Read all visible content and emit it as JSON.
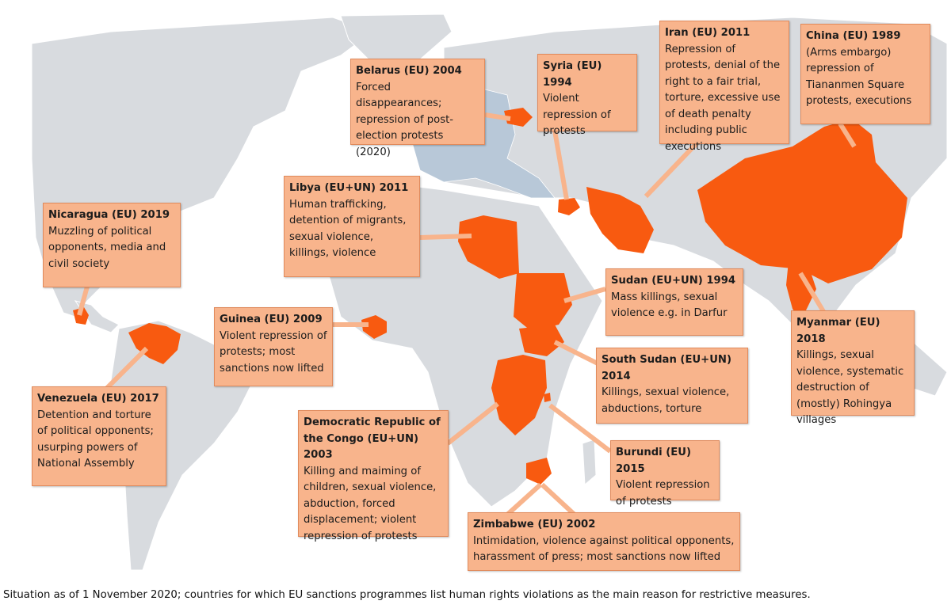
{
  "caption": "Situation as of 1 November 2020; countries for which EU sanctions programmes list human rights violations as the main reason for restrictive measures.",
  "colors": {
    "ocean": "#ffffff",
    "land": "#d8dbdf",
    "eu_member": "#b8c8d8",
    "sanctioned": "#f85a10",
    "callout_fill": "#f8b48c"
  },
  "callouts": [
    {
      "id": "belarus",
      "title": "Belarus (EU) 2004",
      "desc": "Forced disappearances; repression of post-election protests (2020)"
    },
    {
      "id": "syria",
      "title": "Syria (EU) 1994",
      "desc": "Violent repression of protests"
    },
    {
      "id": "iran",
      "title": "Iran (EU) 2011",
      "desc": "Repression of protests, denial of the right to a fair trial, torture, excessive use of death penalty including public executions"
    },
    {
      "id": "china",
      "title": "China (EU) 1989",
      "desc": "(Arms  embargo) repression of Tiananmen Square protests, executions"
    },
    {
      "id": "libya",
      "title": "Libya (EU+UN) 2011",
      "desc": "Human trafficking, detention of migrants, sexual violence, killings, violence"
    },
    {
      "id": "nicaragua",
      "title": "Nicaragua (EU) 2019",
      "desc": "Muzzling of political opponents, media and civil society"
    },
    {
      "id": "sudan",
      "title": "Sudan (EU+UN) 1994",
      "desc": "Mass killings, sexual violence e.g. in Darfur"
    },
    {
      "id": "guinea",
      "title": "Guinea (EU) 2009",
      "desc": "Violent repression of protests; most sanctions now lifted"
    },
    {
      "id": "myanmar",
      "title": "Myanmar (EU) 2018",
      "desc": "Killings, sexual violence, systematic destruction of (mostly) Rohingya villages"
    },
    {
      "id": "south-sudan",
      "title": "South Sudan (EU+UN) 2014",
      "desc": "Killings, sexual violence, abductions, torture"
    },
    {
      "id": "venezuela",
      "title": "Venezuela (EU) 2017",
      "desc": "Detention and torture of political opponents; usurping powers of National Assembly"
    },
    {
      "id": "drc",
      "title": "Democratic Republic of the Congo (EU+UN) 2003",
      "desc": "Killing and maiming of children, sexual violence, abduction, forced displacement; violent repression of protests"
    },
    {
      "id": "burundi",
      "title": "Burundi (EU) 2015",
      "desc": "Violent repression of protests"
    },
    {
      "id": "zimbabwe",
      "title": "Zimbabwe (EU) 2002",
      "desc": "Intimidation, violence against political opponents, harassment of press; most sanctions now lifted"
    }
  ]
}
